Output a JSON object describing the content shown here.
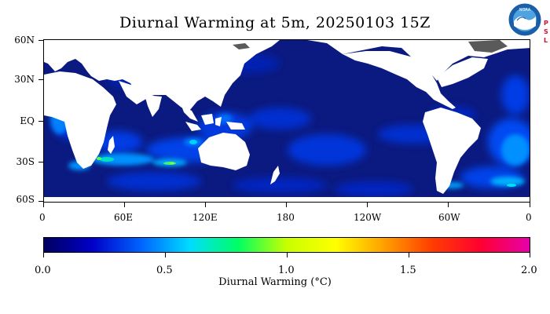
{
  "title": "Diurnal Warming at 5m, 20250103 15Z",
  "logo": {
    "badge_text": "NOAA",
    "side_text": "PSL",
    "colors": {
      "outer": "#1a5fa8",
      "inner": "#4fa3e0",
      "bird": "#ffffff"
    }
  },
  "map": {
    "lat_labels": [
      "60N",
      "30N",
      "EQ",
      "30S",
      "60S"
    ],
    "lon_labels": [
      "0",
      "60E",
      "120E",
      "180",
      "120W",
      "60W",
      "0"
    ],
    "colors": {
      "ocean_background": "#0b1a80",
      "land": "#ffffff",
      "ice": "#5a5a5a"
    }
  },
  "colorbar": {
    "title": "Diurnal Warming (°C)",
    "min": 0.0,
    "max": 2.0,
    "labels": [
      "0.0",
      "0.5",
      "1.0",
      "1.5",
      "2.0"
    ],
    "color_stops": [
      "#000060",
      "#0000c8",
      "#0064ff",
      "#00dcff",
      "#00ff64",
      "#c8ff00",
      "#ffff00",
      "#ffa000",
      "#ff3c00",
      "#ff0032",
      "#e600aa"
    ]
  }
}
